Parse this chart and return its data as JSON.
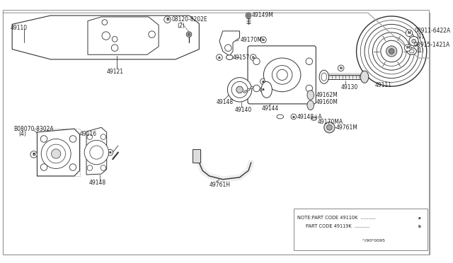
{
  "bg_color": "#ffffff",
  "border_color": "#aaaaaa",
  "line_color": "#333333",
  "text_color": "#222222",
  "font_size": 5.5,
  "note_line1": "NOTE:PART CODE 49110K  ..........",
  "note_line2": "     PART CODE 49119K  ..........",
  "note_ref": "^/90*0095"
}
